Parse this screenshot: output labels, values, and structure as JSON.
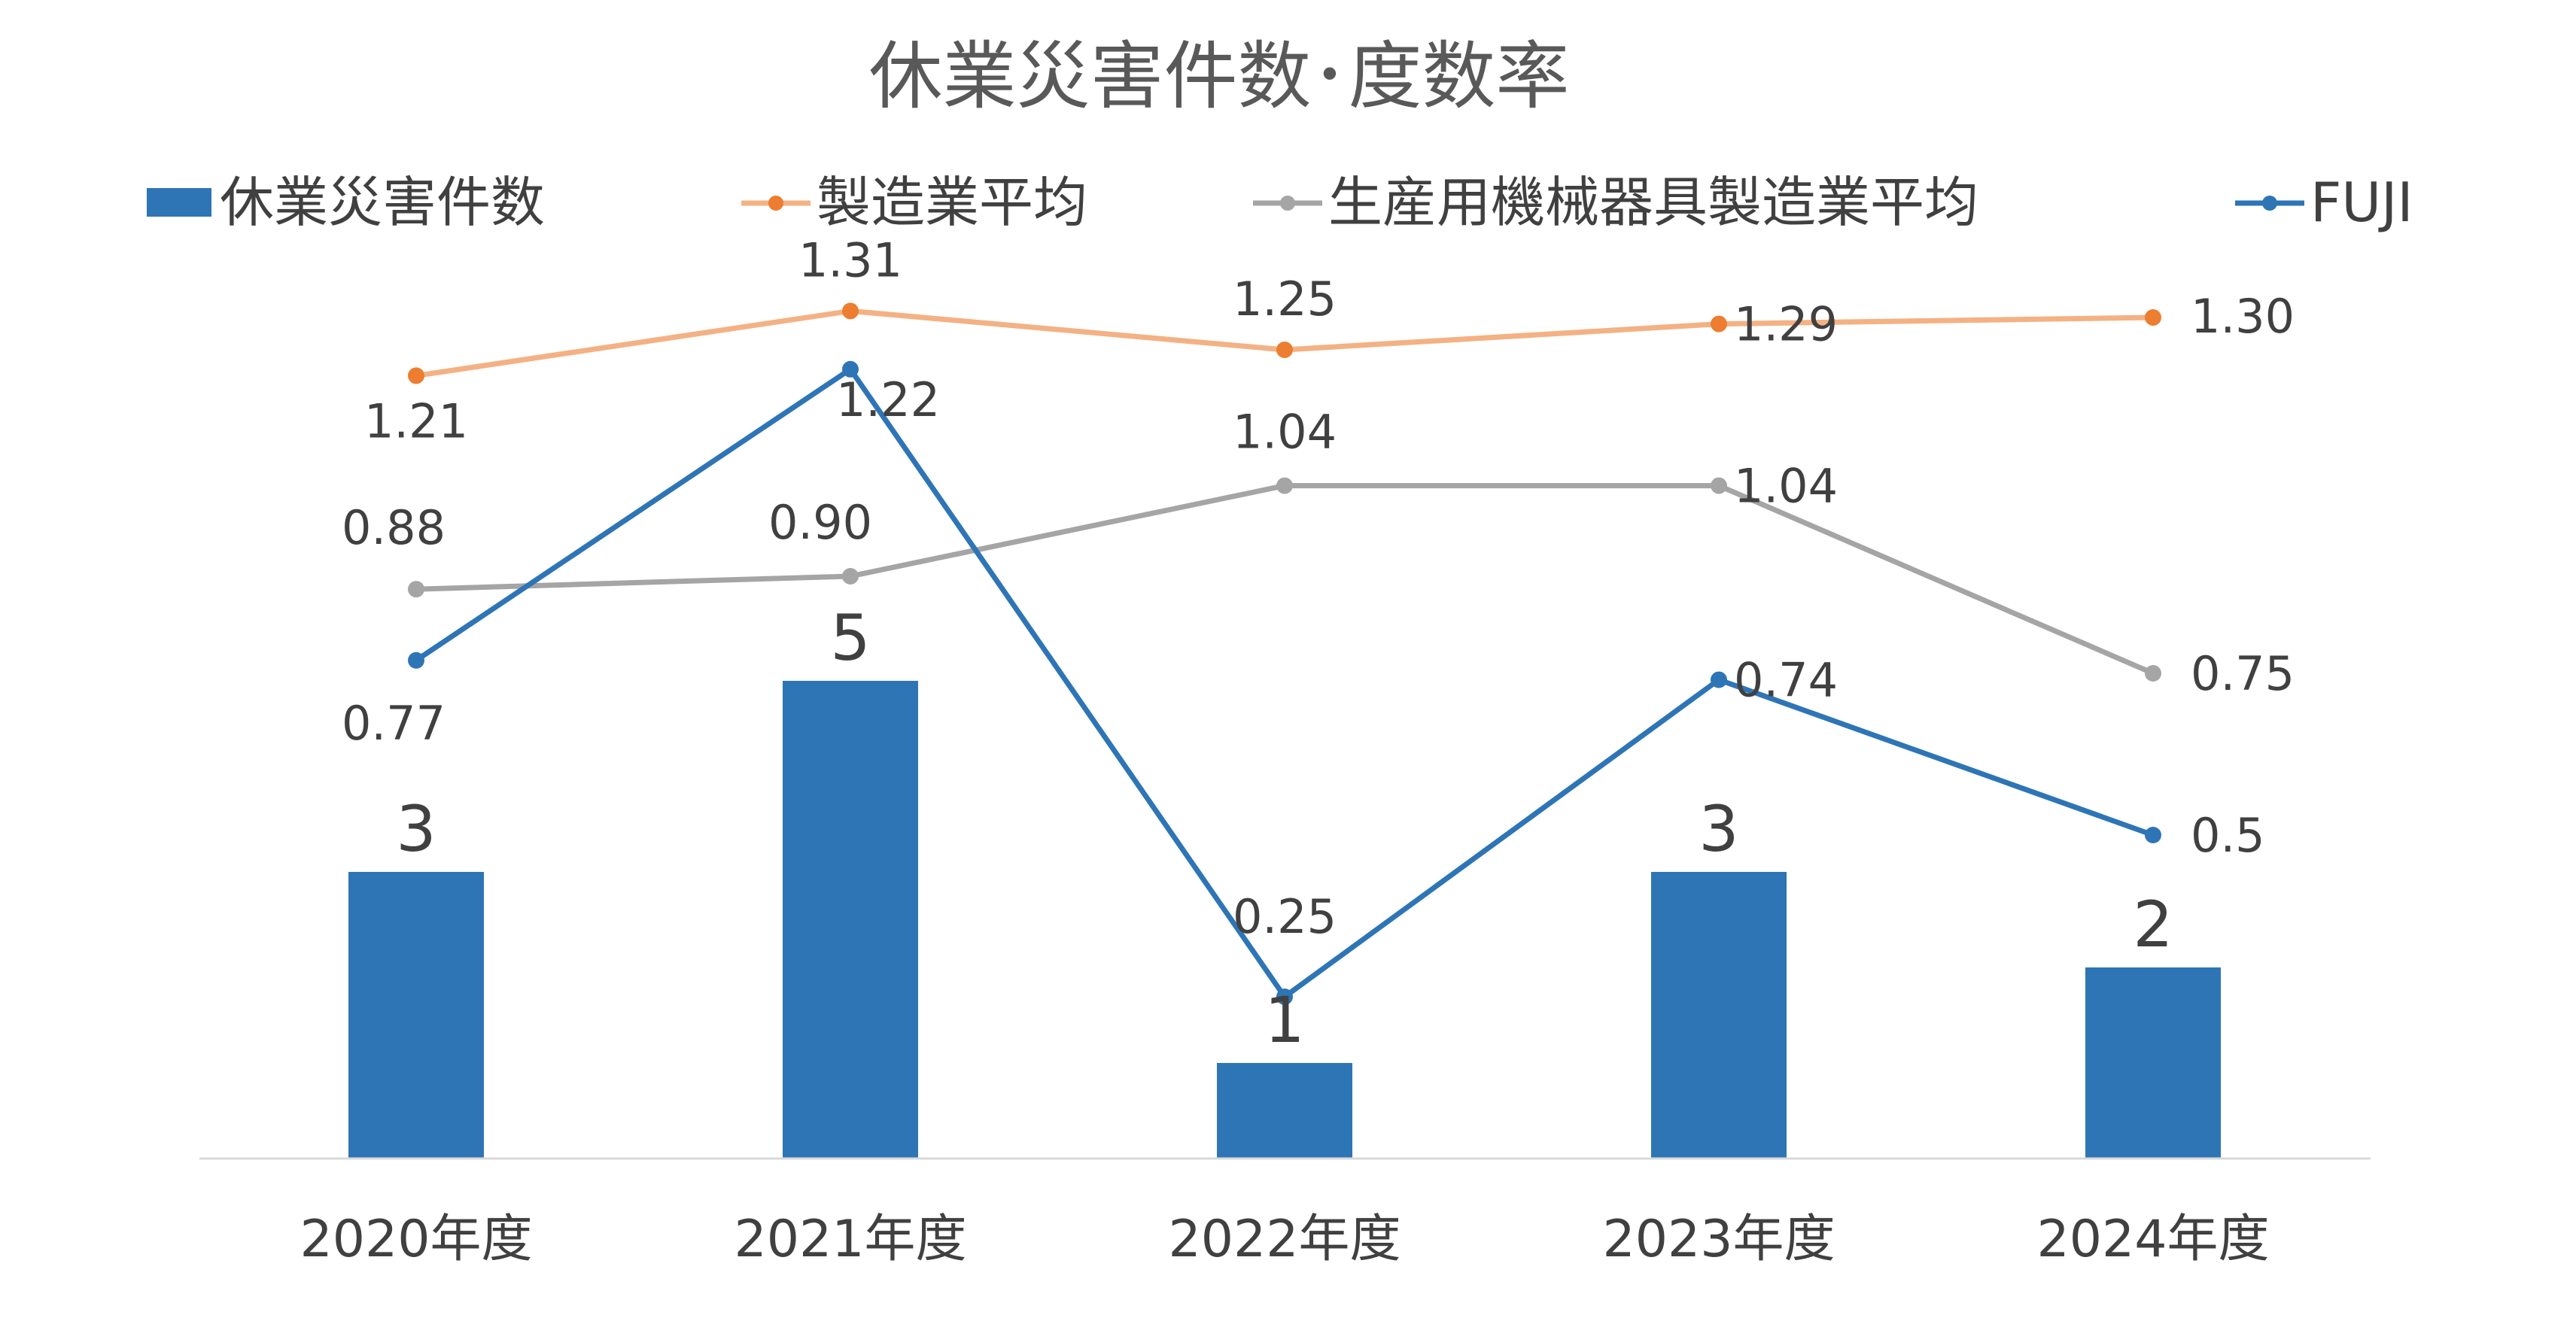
{
  "chart_data": {
    "type": "bar",
    "title": "休業災害件数･度数率",
    "categories": [
      "2020年度",
      "2021年度",
      "2022年度",
      "2023年度",
      "2024年度"
    ],
    "bar_series": {
      "name": "休業災害件数",
      "values": [
        3,
        5,
        1,
        3,
        2
      ],
      "labels": [
        "3",
        "5",
        "1",
        "3",
        "2"
      ],
      "color": "#2E75B6"
    },
    "line_series": [
      {
        "name": "製造業平均",
        "values": [
          1.21,
          1.31,
          1.25,
          1.29,
          1.3
        ],
        "labels": [
          "1.21",
          "1.31",
          "1.25",
          "1.29",
          "1.30"
        ],
        "color": "#F4B183",
        "marker_color": "#ED7D31"
      },
      {
        "name": "生産用機械器具製造業平均",
        "values": [
          0.88,
          0.9,
          1.04,
          1.04,
          0.75
        ],
        "labels": [
          "0.88",
          "0.90",
          "1.04",
          "1.04",
          "0.75"
        ],
        "color": "#A5A5A5",
        "marker_color": "#A5A5A5"
      },
      {
        "name": "FUJI",
        "values": [
          0.77,
          1.22,
          0.25,
          0.74,
          0.5
        ],
        "labels": [
          "0.77",
          "1.22",
          "0.25",
          "0.74",
          "0.5"
        ],
        "color": "#2E75B6",
        "marker_color": "#2E75B6"
      }
    ],
    "legend_position": "top",
    "grid": false,
    "primary_axis_range": [
      0,
      8.5
    ],
    "secondary_axis_range": [
      0,
      1.75
    ]
  }
}
